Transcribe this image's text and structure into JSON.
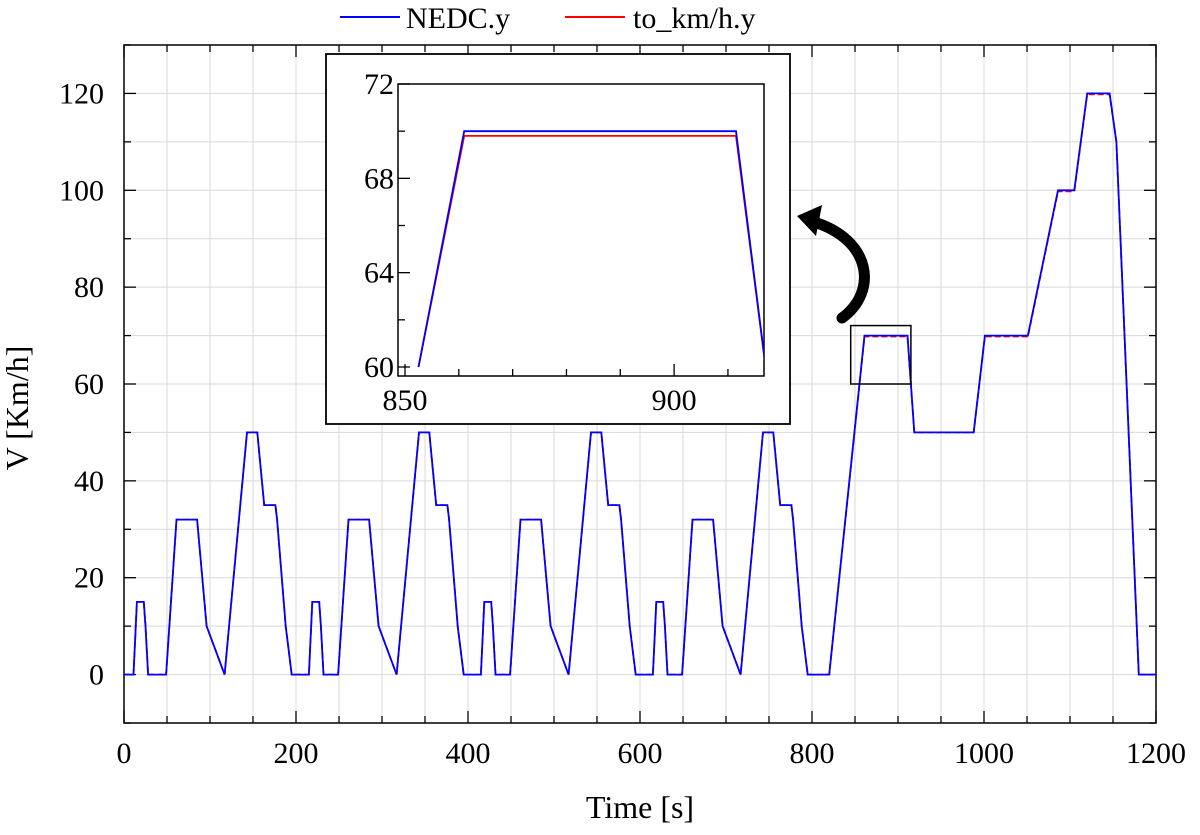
{
  "legend": {
    "items": [
      {
        "label": "NEDC.y",
        "color": "#0000ff"
      },
      {
        "label": "to_km/h.y",
        "color": "#ff0000"
      }
    ]
  },
  "chart_data": {
    "type": "line",
    "xlabel": "Time [s]",
    "ylabel": "V [Km/h]",
    "xlim": [
      0,
      1200
    ],
    "ylim": [
      -10,
      130
    ],
    "xticks": [
      0,
      200,
      400,
      600,
      800,
      1000,
      1200
    ],
    "yticks": [
      0,
      20,
      40,
      60,
      80,
      100,
      120
    ],
    "grid": true,
    "legend_position": "top-center",
    "zoom_box": {
      "x": [
        845,
        915
      ],
      "y": [
        60,
        70
      ]
    },
    "series": [
      {
        "name": "NEDC.y",
        "color": "#0000ff",
        "x": [
          0,
          11,
          15,
          23,
          25,
          28,
          49,
          61,
          85,
          96,
          117,
          143,
          155,
          163,
          176,
          178,
          188,
          195,
          206,
          215,
          219,
          227,
          229,
          232,
          249,
          261,
          285,
          296,
          317,
          343,
          355,
          363,
          376,
          378,
          388,
          395,
          406,
          415,
          419,
          427,
          429,
          432,
          449,
          461,
          485,
          496,
          517,
          543,
          555,
          563,
          576,
          578,
          588,
          595,
          606,
          615,
          619,
          627,
          629,
          632,
          649,
          661,
          685,
          696,
          717,
          743,
          755,
          763,
          776,
          778,
          788,
          795,
          806,
          820,
          861,
          911,
          919,
          988,
          1001,
          1051,
          1086,
          1105,
          1120,
          1136,
          1146,
          1154,
          1180,
          1200
        ],
        "values": [
          0,
          0,
          15,
          15,
          10,
          0,
          0,
          32,
          32,
          10,
          0,
          50,
          50,
          35,
          35,
          32,
          10,
          0,
          0,
          0,
          15,
          15,
          10,
          0,
          0,
          32,
          32,
          10,
          0,
          50,
          50,
          35,
          35,
          32,
          10,
          0,
          0,
          0,
          15,
          15,
          10,
          0,
          0,
          32,
          32,
          10,
          0,
          50,
          50,
          35,
          35,
          32,
          10,
          0,
          0,
          0,
          15,
          15,
          10,
          0,
          0,
          32,
          32,
          10,
          0,
          50,
          50,
          35,
          35,
          32,
          10,
          0,
          0,
          0,
          70,
          70,
          50,
          50,
          70,
          70,
          100,
          100,
          120,
          120,
          120,
          110,
          0,
          0
        ]
      },
      {
        "name": "to_km/h.y",
        "color": "#ff0000",
        "x": [
          0,
          11,
          15,
          23,
          25,
          28,
          49,
          61,
          85,
          96,
          117,
          143,
          155,
          163,
          176,
          178,
          188,
          195,
          206,
          215,
          219,
          227,
          229,
          232,
          249,
          261,
          285,
          296,
          317,
          343,
          355,
          363,
          376,
          378,
          388,
          395,
          406,
          415,
          419,
          427,
          429,
          432,
          449,
          461,
          485,
          496,
          517,
          543,
          555,
          563,
          576,
          578,
          588,
          595,
          606,
          615,
          619,
          627,
          629,
          632,
          649,
          661,
          685,
          696,
          717,
          743,
          755,
          763,
          776,
          778,
          788,
          795,
          806,
          820,
          861,
          911,
          919,
          988,
          1001,
          1051,
          1086,
          1105,
          1120,
          1136,
          1146,
          1154,
          1180,
          1200
        ],
        "values": [
          0,
          0,
          15,
          15,
          10,
          0,
          0,
          32,
          32,
          10,
          0,
          50,
          50,
          35,
          35,
          32,
          10,
          0,
          0,
          0,
          15,
          15,
          10,
          0,
          0,
          32,
          32,
          10,
          0,
          50,
          50,
          35,
          35,
          32,
          10,
          0,
          0,
          0,
          15,
          15,
          10,
          0,
          0,
          32,
          32,
          10,
          0,
          50,
          50,
          35,
          35,
          32,
          10,
          0,
          0,
          0,
          15,
          15,
          10,
          0,
          0,
          32,
          32,
          10,
          0,
          50,
          50,
          35,
          35,
          32,
          10,
          0,
          0,
          0,
          69.8,
          69.8,
          50,
          50,
          69.8,
          69.8,
          99.8,
          99.8,
          119.8,
          119.8,
          119.8,
          110,
          0,
          0
        ]
      }
    ],
    "inset": {
      "type": "line",
      "xlim": [
        850,
        918
      ],
      "ylim": [
        60,
        72
      ],
      "xticks": [
        850,
        900
      ],
      "yticks": [
        60,
        64,
        68,
        72
      ],
      "series": [
        {
          "name": "NEDC.y",
          "color": "#0000ff",
          "x": [
            852.5,
            861,
            911.5,
            917
          ],
          "values": [
            60,
            70,
            70,
            60
          ]
        },
        {
          "name": "to_km/h.y",
          "color": "#ff0000",
          "x": [
            852.5,
            861,
            911.5,
            917
          ],
          "values": [
            60,
            69.8,
            69.8,
            60
          ]
        }
      ]
    }
  }
}
